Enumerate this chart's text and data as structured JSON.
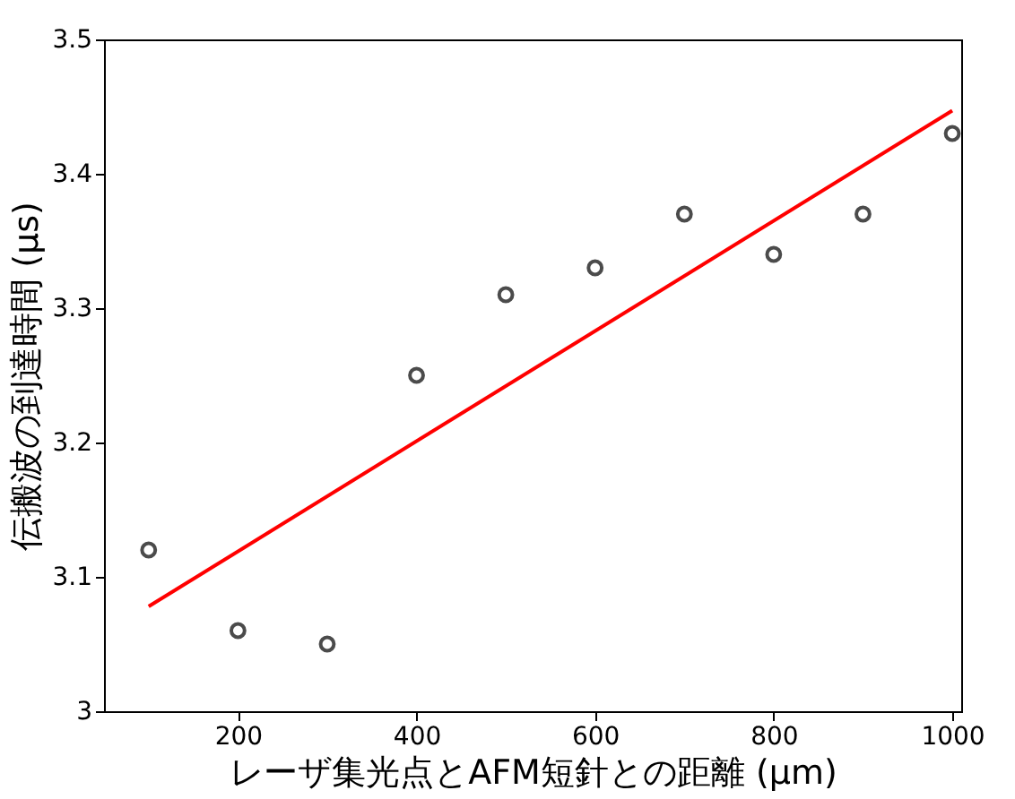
{
  "chart_data": {
    "type": "scatter",
    "xlabel": "レーザ集光点とAFM短針との距離 (μm)",
    "ylabel": "伝搬波の到達時間 (μs)",
    "xlim": [
      50,
      1010
    ],
    "xticks": [
      200,
      400,
      600,
      800,
      1000
    ],
    "ylim": [
      3,
      3.5
    ],
    "yticks": [
      3,
      3.1,
      3.2,
      3.3,
      3.4,
      3.5
    ],
    "grid": false,
    "series": [
      {
        "color": "#000000",
        "marker": "circle",
        "x": [
          100,
          200,
          300,
          400,
          500,
          600,
          700,
          800,
          900,
          1000
        ],
        "values": [
          3.12,
          3.06,
          3.05,
          3.25,
          3.31,
          3.33,
          3.37,
          3.34,
          3.37,
          3.43
        ]
      },
      {
        "type": "line",
        "color": "#ff0000",
        "line_style": "solid",
        "x": [
          100,
          1000
        ],
        "values": [
          3.078,
          3.447
        ]
      }
    ]
  }
}
